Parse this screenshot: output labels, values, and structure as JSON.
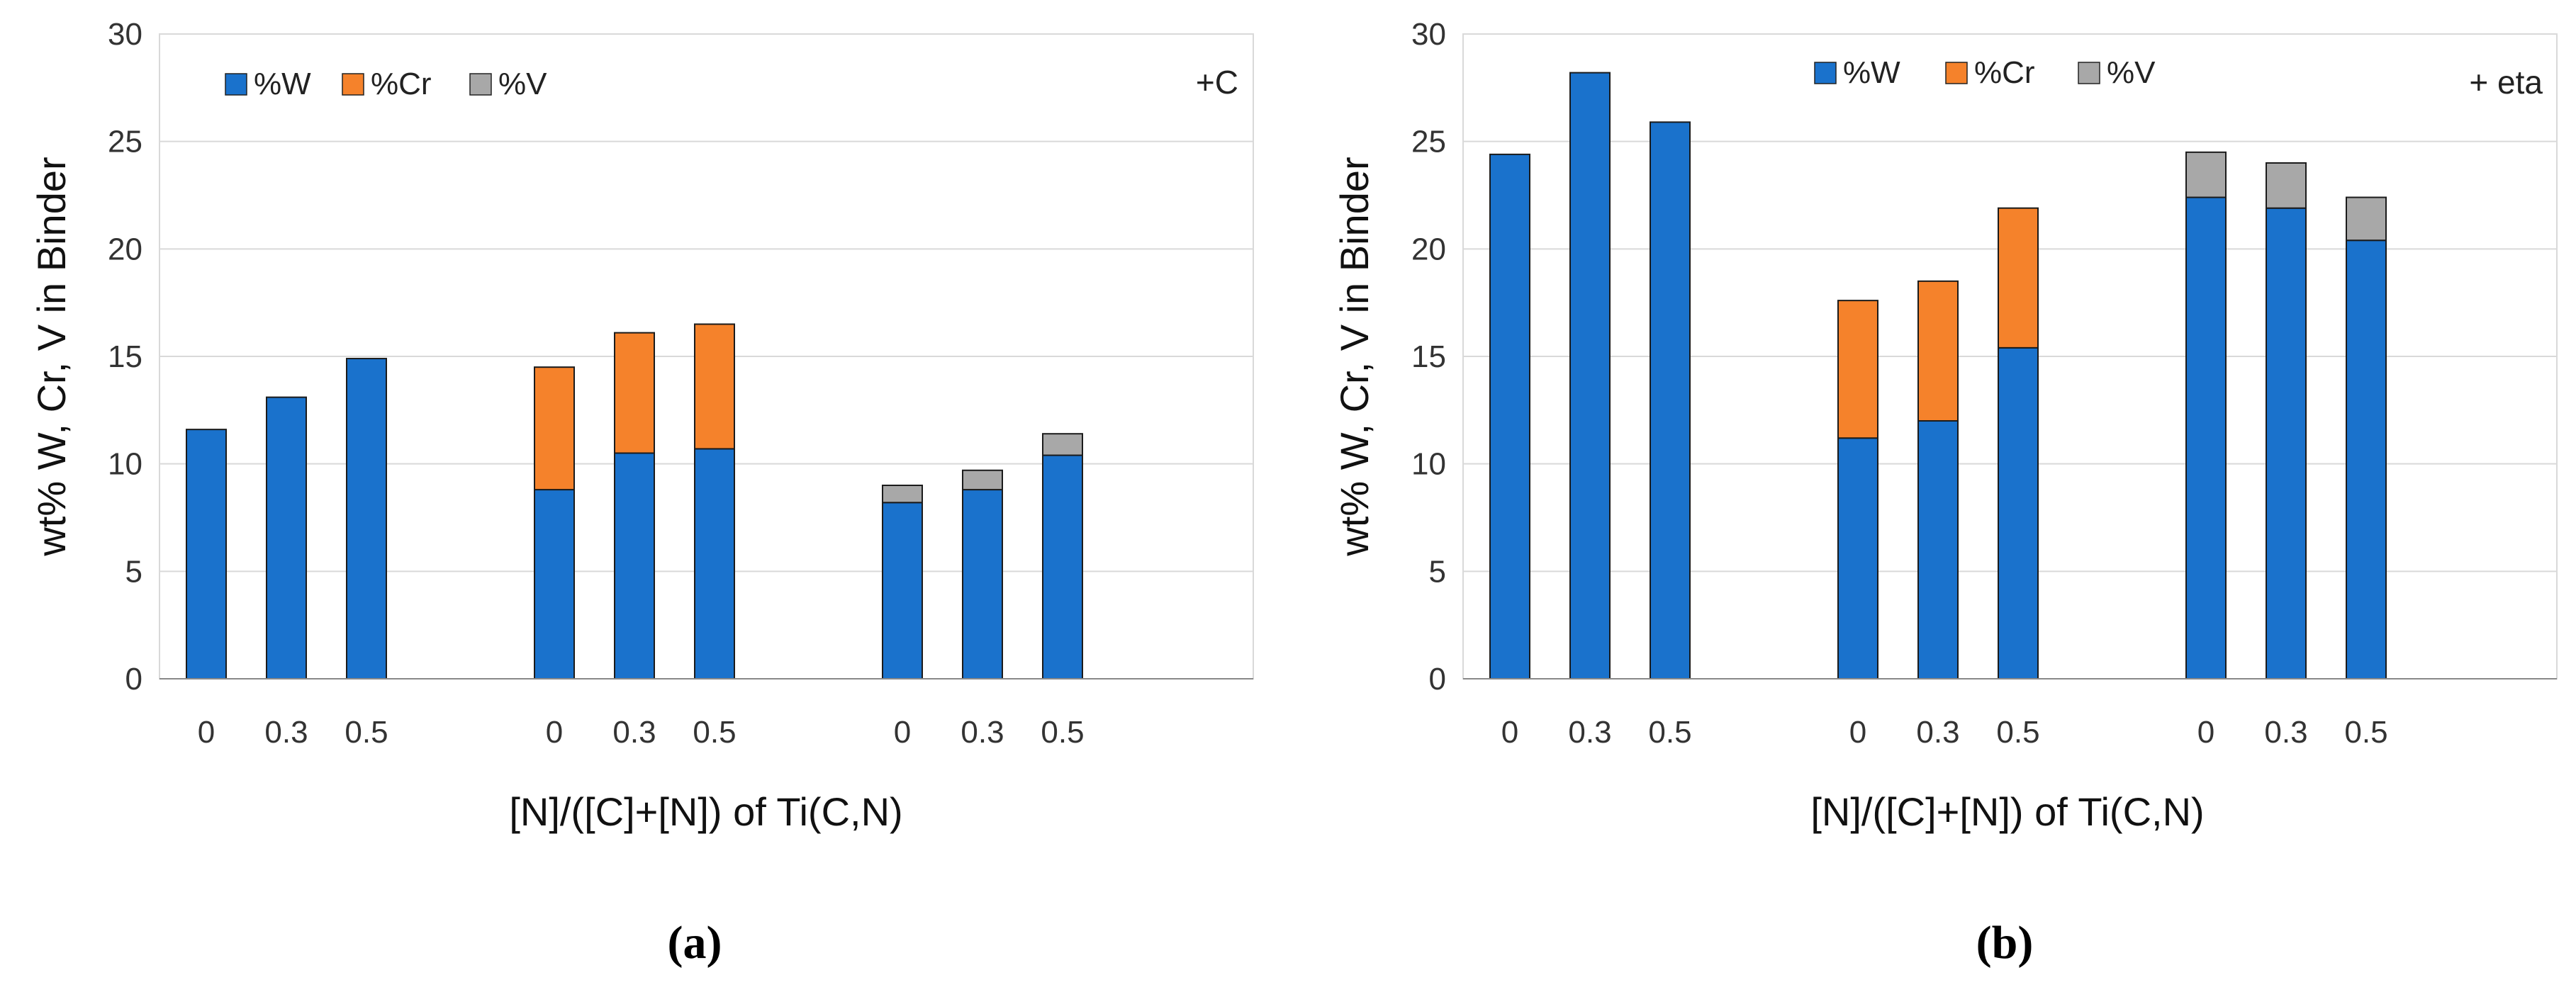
{
  "colors": {
    "W": "#1a72cc",
    "Cr": "#f5822b",
    "V": "#a8a8a8"
  },
  "chart_data": [
    {
      "type": "bar",
      "stacked": true,
      "panel_label": "(a)",
      "annotation": "+C",
      "xlabel": "[N]/([C]+[N]) of Ti(C,N)",
      "ylabel": "wt% W, Cr, V in Binder",
      "ylim": [
        0,
        30
      ],
      "yticks": [
        "0",
        "5",
        "10",
        "15",
        "20",
        "25",
        "30"
      ],
      "legend": [
        "%W",
        "%Cr",
        "%V"
      ],
      "legend_position": "top-left",
      "categories": [
        "0",
        "0.3",
        "0.5",
        "0",
        "0.3",
        "0.5",
        "0",
        "0.3",
        "0.5"
      ],
      "series": [
        {
          "name": "%W",
          "values": [
            11.6,
            13.1,
            14.9,
            8.8,
            10.5,
            10.7,
            8.2,
            8.8,
            10.4
          ]
        },
        {
          "name": "%Cr",
          "values": [
            0,
            0,
            0,
            5.7,
            5.6,
            5.8,
            0,
            0,
            0
          ]
        },
        {
          "name": "%V",
          "values": [
            0,
            0,
            0,
            0,
            0,
            0,
            0.8,
            0.9,
            1.0
          ]
        }
      ]
    },
    {
      "type": "bar",
      "stacked": true,
      "panel_label": "(b)",
      "annotation": "+ eta",
      "xlabel": "[N]/([C]+[N]) of Ti(C,N)",
      "ylabel": "wt% W, Cr, V in Binder",
      "ylim": [
        0,
        30
      ],
      "yticks": [
        "0",
        "5",
        "10",
        "15",
        "20",
        "25",
        "30"
      ],
      "legend": [
        "%W",
        "%Cr",
        "%V"
      ],
      "legend_position": "top-center",
      "categories": [
        "0",
        "0.3",
        "0.5",
        "0",
        "0.3",
        "0.5",
        "0",
        "0.3",
        "0.5"
      ],
      "series": [
        {
          "name": "%W",
          "values": [
            24.4,
            28.2,
            25.9,
            11.2,
            12.0,
            15.4,
            22.4,
            21.9,
            20.4
          ]
        },
        {
          "name": "%Cr",
          "values": [
            0,
            0,
            0,
            6.4,
            6.5,
            6.5,
            0,
            0,
            0
          ]
        },
        {
          "name": "%V",
          "values": [
            0,
            0,
            0,
            0,
            0,
            0,
            2.1,
            2.1,
            2.0
          ]
        }
      ]
    }
  ]
}
